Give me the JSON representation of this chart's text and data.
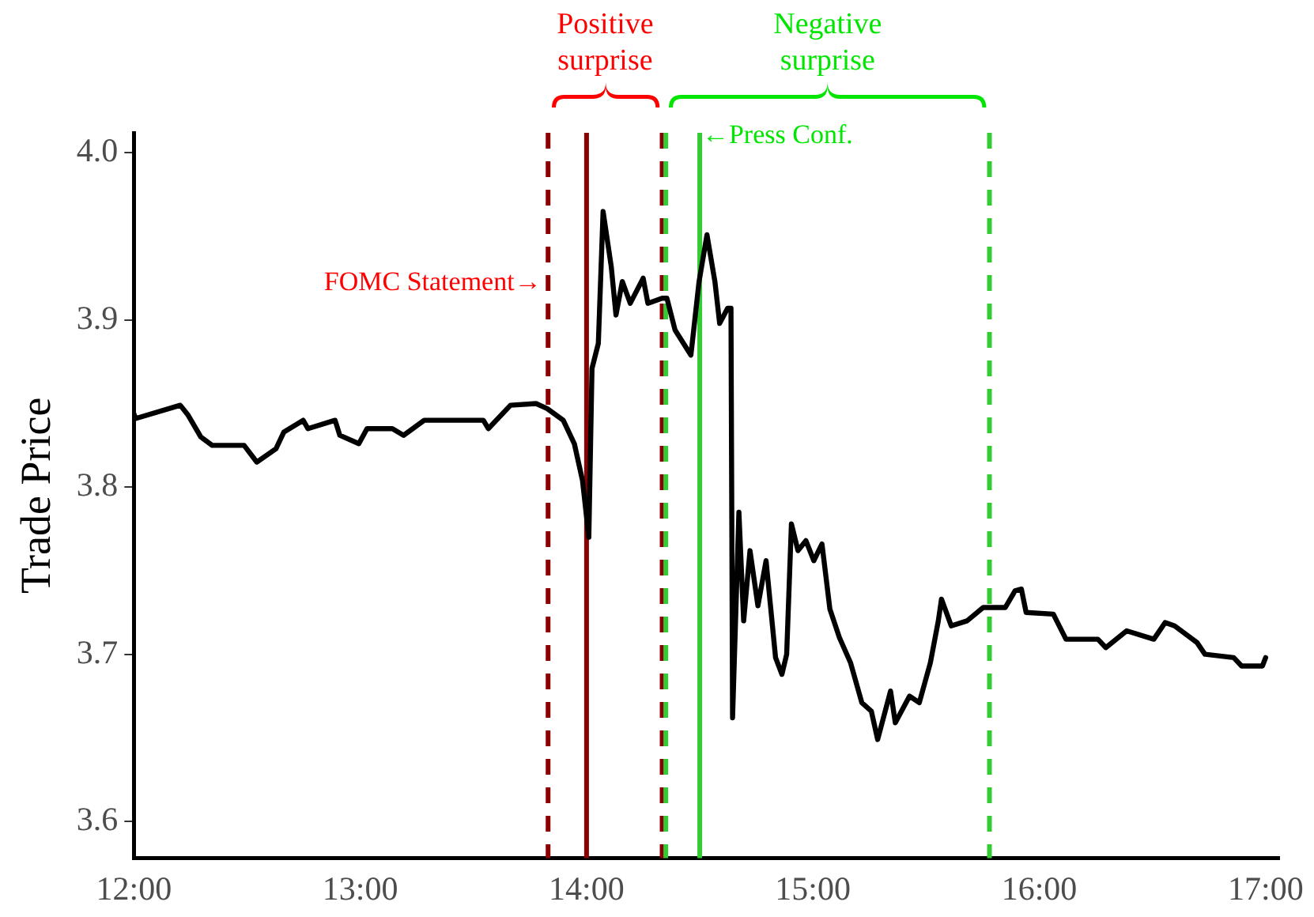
{
  "chart_data": {
    "type": "line",
    "ylabel": "Trade Price",
    "x": [
      12.0,
      12.007,
      12.205,
      12.24,
      12.296,
      12.346,
      12.487,
      12.543,
      12.628,
      12.663,
      12.748,
      12.769,
      12.889,
      12.91,
      12.994,
      13.03,
      13.142,
      13.192,
      13.283,
      13.544,
      13.566,
      13.664,
      13.777,
      13.826,
      13.897,
      13.946,
      13.982,
      14.01,
      14.024,
      14.052,
      14.073,
      14.109,
      14.13,
      14.158,
      14.193,
      14.25,
      14.271,
      14.334,
      14.355,
      14.391,
      14.461,
      14.497,
      14.532,
      14.567,
      14.588,
      14.623,
      14.638,
      14.645,
      14.673,
      14.694,
      14.722,
      14.757,
      14.793,
      14.835,
      14.863,
      14.884,
      14.905,
      14.934,
      14.969,
      15.004,
      15.04,
      15.075,
      15.117,
      15.166,
      15.216,
      15.258,
      15.286,
      15.343,
      15.364,
      15.427,
      15.47,
      15.519,
      15.554,
      15.568,
      15.611,
      15.681,
      15.752,
      15.85,
      15.893,
      15.921,
      15.942,
      16.062,
      16.118,
      16.259,
      16.294,
      16.386,
      16.506,
      16.556,
      16.598,
      16.697,
      16.732,
      16.859,
      16.894,
      16.986,
      17.0
    ],
    "series": [
      {
        "color": "#000000",
        "values": [
          3.844,
          3.841,
          3.849,
          3.843,
          3.83,
          3.825,
          3.825,
          3.815,
          3.823,
          3.833,
          3.84,
          3.835,
          3.84,
          3.831,
          3.826,
          3.835,
          3.835,
          3.831,
          3.84,
          3.84,
          3.835,
          3.849,
          3.85,
          3.847,
          3.84,
          3.826,
          3.804,
          3.77,
          3.871,
          3.886,
          3.965,
          3.932,
          3.903,
          3.923,
          3.91,
          3.925,
          3.91,
          3.913,
          3.913,
          3.894,
          3.879,
          3.923,
          3.951,
          3.923,
          3.898,
          3.907,
          3.907,
          3.662,
          3.785,
          3.72,
          3.762,
          3.729,
          3.756,
          3.698,
          3.688,
          3.7,
          3.778,
          3.762,
          3.768,
          3.756,
          3.766,
          3.727,
          3.71,
          3.695,
          3.671,
          3.666,
          3.649,
          3.678,
          3.659,
          3.675,
          3.671,
          3.695,
          3.72,
          3.733,
          3.717,
          3.72,
          3.728,
          3.728,
          3.738,
          3.739,
          3.725,
          3.724,
          3.709,
          3.709,
          3.704,
          3.714,
          3.709,
          3.719,
          3.717,
          3.707,
          3.7,
          3.698,
          3.693,
          3.693,
          3.698
        ]
      }
    ],
    "xlim": [
      12,
      17.06
    ],
    "ylim": [
      3.578,
      4.012
    ],
    "xticks": [
      {
        "value": 12,
        "label": "12:00"
      },
      {
        "value": 13,
        "label": "13:00"
      },
      {
        "value": 14,
        "label": "14:00"
      },
      {
        "value": 15,
        "label": "15:00"
      },
      {
        "value": 16,
        "label": "16:00"
      },
      {
        "value": 17,
        "label": "17:00"
      }
    ],
    "yticks": [
      3.6,
      3.7,
      3.8,
      3.9,
      {
        "value": 4,
        "label": "4.0"
      }
    ],
    "grid": false,
    "legend": false,
    "marker": "none",
    "line_style": "solid",
    "ref_lines": [
      {
        "axis": "x",
        "value": 13.83,
        "color": "#8b0000",
        "line_style": "dashed"
      },
      {
        "axis": "x",
        "value": 14.0,
        "color": "#8b0000",
        "line_style": "solid"
      },
      {
        "axis": "x",
        "value": 14.334,
        "color": "#8b0000",
        "line_style": "dashed"
      },
      {
        "axis": "x",
        "value": 14.35,
        "color": "#33cc33",
        "line_style": "dashed"
      },
      {
        "axis": "x",
        "value": 14.5,
        "color": "#33cc33",
        "line_style": "solid"
      },
      {
        "axis": "x",
        "value": 15.78,
        "color": "#33cc33",
        "line_style": "dashed"
      }
    ],
    "annotations": [
      "Positive surprise",
      "Negative surprise",
      {
        "text": "FOMC Statement→",
        "x": 13.8,
        "y": 3.922
      },
      {
        "text": "←Press Conf.",
        "x": 14.51,
        "y": 4.01
      }
    ]
  }
}
